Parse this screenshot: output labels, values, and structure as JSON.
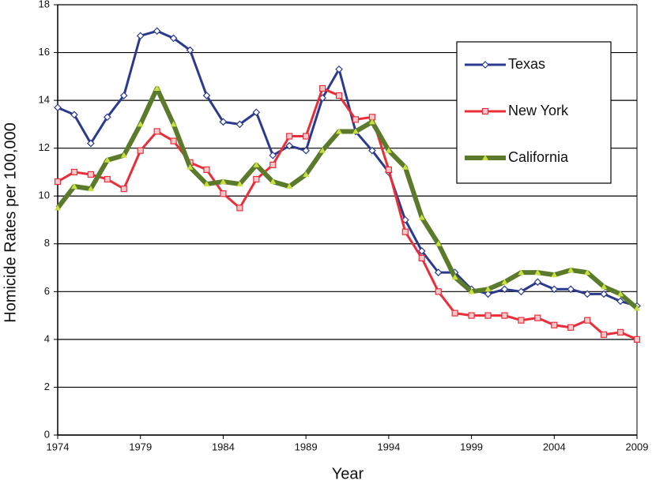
{
  "chart_data": {
    "type": "line",
    "x_label": "Year",
    "y_label": "Homicide Rates per 100,000",
    "x": [
      1974,
      1975,
      1976,
      1977,
      1978,
      1979,
      1980,
      1981,
      1982,
      1983,
      1984,
      1985,
      1986,
      1987,
      1988,
      1989,
      1990,
      1991,
      1992,
      1993,
      1994,
      1995,
      1996,
      1997,
      1998,
      1999,
      2000,
      2001,
      2002,
      2003,
      2004,
      2005,
      2006,
      2007,
      2008,
      2009
    ],
    "series": [
      {
        "name": "Texas",
        "color": "#2b3a8c",
        "marker": "diamond",
        "marker_fill": "#ffffff",
        "line_width": 3,
        "values": [
          13.7,
          13.4,
          12.2,
          13.3,
          14.2,
          16.7,
          16.9,
          16.6,
          16.1,
          14.2,
          13.1,
          13.0,
          13.5,
          11.7,
          12.1,
          11.9,
          14.1,
          15.3,
          12.7,
          11.9,
          11.0,
          9.0,
          7.7,
          6.8,
          6.8,
          6.1,
          5.9,
          6.1,
          6.0,
          6.4,
          6.1,
          6.1,
          5.9,
          5.9,
          5.6,
          5.4
        ]
      },
      {
        "name": "New York",
        "color": "#ea2d38",
        "marker": "square",
        "marker_fill": "#f7c9cc",
        "line_width": 3,
        "values": [
          10.6,
          11.0,
          10.9,
          10.7,
          10.3,
          11.9,
          12.7,
          12.3,
          11.4,
          11.1,
          10.1,
          9.5,
          10.7,
          11.3,
          12.5,
          12.5,
          14.5,
          14.2,
          13.2,
          13.3,
          11.1,
          8.5,
          7.4,
          6.0,
          5.1,
          5.0,
          5.0,
          5.0,
          4.8,
          4.9,
          4.6,
          4.5,
          4.8,
          4.2,
          4.3,
          4.0
        ]
      },
      {
        "name": "California",
        "color": "#5b7a2b",
        "marker": "triangle",
        "marker_fill": "#c8e040",
        "line_width": 6,
        "values": [
          9.5,
          10.4,
          10.3,
          11.5,
          11.7,
          13.0,
          14.5,
          13.0,
          11.2,
          10.5,
          10.6,
          10.5,
          11.3,
          10.6,
          10.4,
          10.9,
          11.9,
          12.7,
          12.7,
          13.1,
          11.9,
          11.2,
          9.1,
          8.0,
          6.6,
          6.0,
          6.1,
          6.4,
          6.8,
          6.8,
          6.7,
          6.9,
          6.8,
          6.2,
          5.9,
          5.3
        ]
      }
    ],
    "xlim": [
      1974,
      2009
    ],
    "xticks": [
      1974,
      1979,
      1984,
      1989,
      1994,
      1999,
      2004,
      2009
    ],
    "ylim": [
      0,
      18
    ],
    "yticks": [
      0,
      2,
      4,
      6,
      8,
      10,
      12,
      14,
      16,
      18
    ],
    "grid": true
  }
}
